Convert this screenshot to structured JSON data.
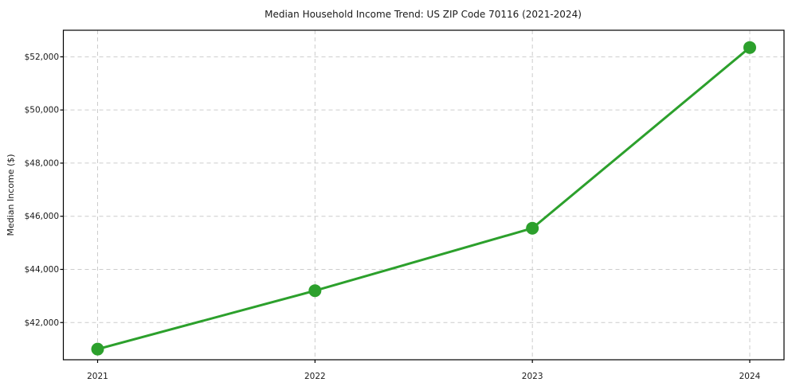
{
  "chart_data": {
    "type": "line",
    "title": "Median Household Income Trend: US ZIP Code 70116 (2021-2024)",
    "xlabel": "",
    "ylabel": "Median Income ($)",
    "x": [
      2021,
      2022,
      2023,
      2024
    ],
    "x_tick_labels": [
      "2021",
      "2022",
      "2023",
      "2024"
    ],
    "series": [
      {
        "name": "Median Household Income",
        "values": [
          41000,
          43200,
          45550,
          52350
        ]
      }
    ],
    "yticks": [
      42000,
      44000,
      46000,
      48000,
      50000,
      52000
    ],
    "ytick_labels": [
      "$42,000",
      "$44,000",
      "$46,000",
      "$48,000",
      "$50,000",
      "$52,000"
    ],
    "ylim": [
      40600,
      53000
    ],
    "grid": true,
    "legend": "none",
    "line_color": "#2ca02c",
    "marker": "circle",
    "grid_color": "#cccccc",
    "axis_color": "#000000",
    "text_color": "#1a1a1a"
  }
}
